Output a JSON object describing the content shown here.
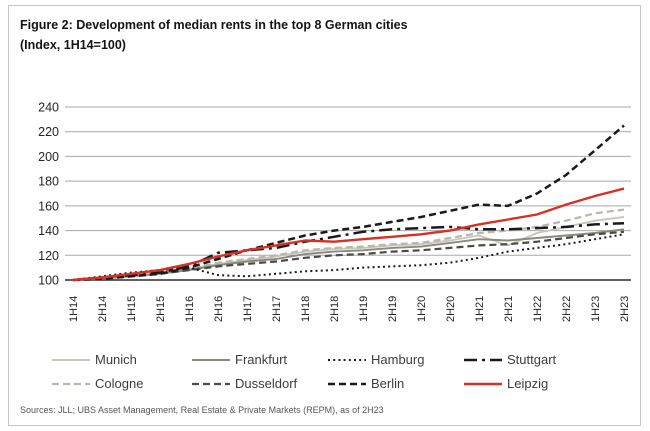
{
  "figure": {
    "title_line1": "Figure 2: Development of median rents in the top 8 German cities",
    "title_line2": "(Index, 1H14=100)",
    "source": "Sources: JLL; UBS Asset Management, Real Estate & Private Markets (REPM), as of 2H23"
  },
  "colors": {
    "accent_red": "#d93025",
    "black_line": "#1a1a1a",
    "dark_gray_line": "#4a4a46",
    "mid_gray_line": "#8a887f",
    "light_gray_line": "#c9c6bb",
    "light_gray_dash": "#b9b6aa",
    "gridline": "#a9a9a9",
    "axis": "#2b2b2b",
    "border": "#c4c4c4"
  },
  "chart_data": {
    "type": "line",
    "title": "Figure 2: Development of median rents in the top 8 German cities",
    "subtitle": "(Index, 1H14=100)",
    "xlabel": "",
    "ylabel": "",
    "ylim": [
      100,
      240
    ],
    "yticks": [
      100,
      120,
      140,
      160,
      180,
      200,
      220,
      240
    ],
    "grid": "horizontal",
    "legend_position": "bottom",
    "categories": [
      "1H14",
      "2H14",
      "1H15",
      "2H15",
      "1H16",
      "2H16",
      "1H17",
      "2H17",
      "1H18",
      "2H18",
      "1H19",
      "2H19",
      "1H20",
      "2H20",
      "1H21",
      "2H21",
      "1H22",
      "2H22",
      "1H23",
      "2H23"
    ],
    "series": [
      {
        "name": "Munich",
        "color": "#c9c6bb",
        "line_style": "solid",
        "values": [
          100,
          102,
          104,
          106,
          109,
          113,
          116,
          119,
          123,
          125,
          126,
          128,
          129,
          132,
          136,
          128,
          138,
          143,
          148,
          151
        ]
      },
      {
        "name": "Frankfurt",
        "color": "#8a887f",
        "line_style": "solid",
        "values": [
          100,
          101,
          103,
          105,
          108,
          112,
          115,
          117,
          121,
          123,
          124,
          126,
          127,
          130,
          133,
          132,
          134,
          136,
          138,
          141
        ]
      },
      {
        "name": "Hamburg",
        "color": "#1a1a1a",
        "line_style": "dotted",
        "values": [
          100,
          103,
          106,
          108,
          110,
          104,
          103,
          105,
          107,
          108,
          110,
          111,
          112,
          114,
          118,
          123,
          126,
          129,
          133,
          137
        ]
      },
      {
        "name": "Stuttgart",
        "color": "#1a1a1a",
        "line_style": "dash-dot",
        "values": [
          100,
          102,
          104,
          106,
          111,
          122,
          124,
          126,
          131,
          135,
          139,
          141,
          142,
          143,
          141,
          141,
          142,
          143,
          145,
          146
        ]
      },
      {
        "name": "Cologne",
        "color": "#b9b6aa",
        "line_style": "dashed",
        "values": [
          100,
          102,
          104,
          106,
          109,
          114,
          117,
          120,
          124,
          126,
          127,
          129,
          130,
          134,
          138,
          140,
          143,
          148,
          154,
          157
        ]
      },
      {
        "name": "Dusseldorf",
        "color": "#4a4a46",
        "line_style": "dashed",
        "values": [
          100,
          101,
          103,
          105,
          108,
          111,
          113,
          115,
          118,
          120,
          121,
          123,
          124,
          126,
          128,
          129,
          131,
          134,
          137,
          139
        ]
      },
      {
        "name": "Berlin",
        "color": "#1a1a1a",
        "line_style": "dashed",
        "values": [
          100,
          101,
          103,
          105,
          110,
          117,
          124,
          130,
          136,
          140,
          143,
          147,
          151,
          156,
          161,
          160,
          170,
          185,
          205,
          225
        ]
      },
      {
        "name": "Leipzig",
        "color": "#d93025",
        "line_style": "solid",
        "values": [
          100,
          102,
          105,
          108,
          113,
          119,
          124,
          128,
          132,
          131,
          133,
          135,
          137,
          140,
          145,
          149,
          153,
          161,
          168,
          174
        ]
      }
    ]
  }
}
